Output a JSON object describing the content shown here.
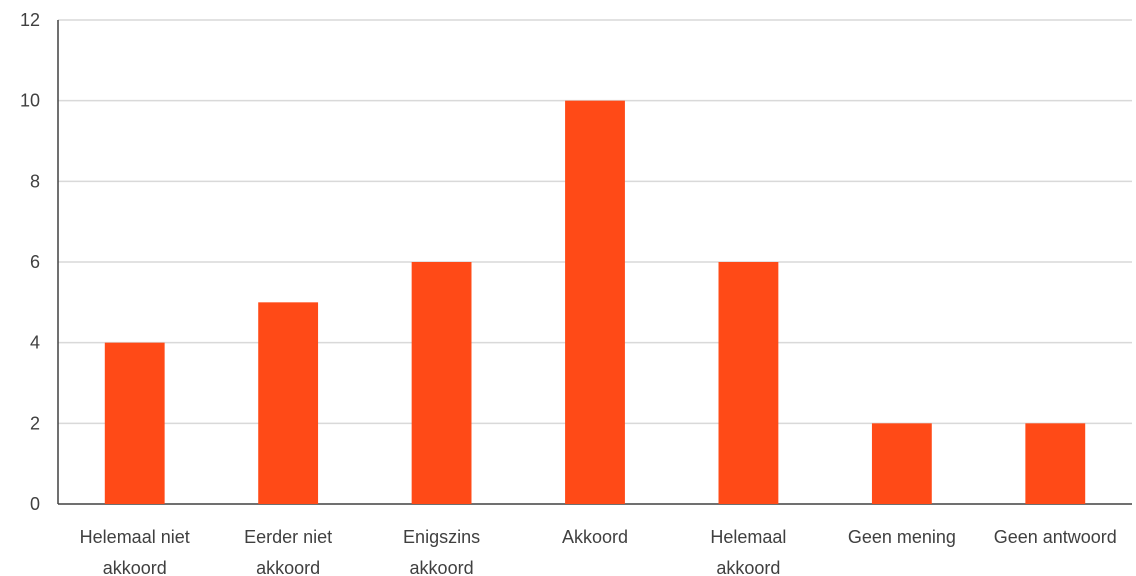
{
  "chart_data": {
    "type": "bar",
    "title": "",
    "xlabel": "",
    "ylabel": "",
    "categories": [
      [
        "Helemaal niet",
        "akkoord"
      ],
      [
        "Eerder niet",
        "akkoord"
      ],
      [
        "Enigszins",
        "akkoord"
      ],
      [
        "Akkoord"
      ],
      [
        "Helemaal",
        "akkoord"
      ],
      [
        "Geen mening"
      ],
      [
        "Geen antwoord"
      ]
    ],
    "values": [
      4,
      5,
      6,
      10,
      6,
      2,
      2
    ],
    "ylim": [
      0,
      12
    ],
    "yticks": [
      0,
      2,
      4,
      6,
      8,
      10,
      12
    ],
    "grid": true,
    "legend": "none",
    "bar_color": "#FF4A17",
    "grid_color": "#D9D9D9",
    "axis_color": "#404040"
  }
}
